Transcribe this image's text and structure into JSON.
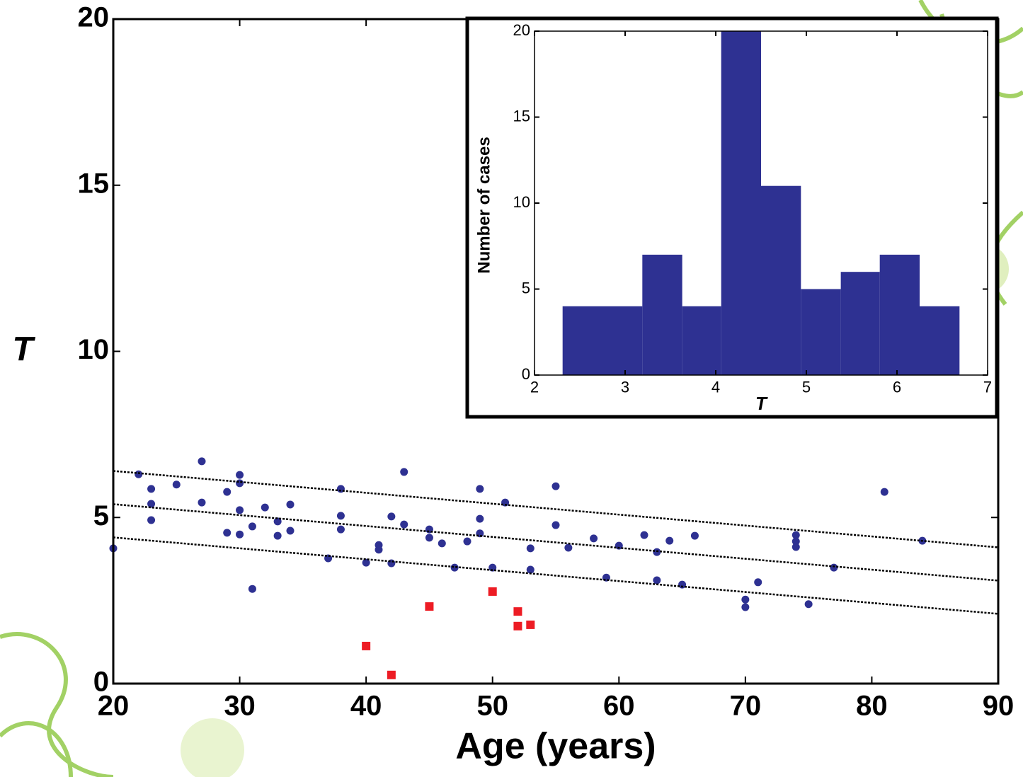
{
  "chart_data": [
    {
      "type": "scatter",
      "xlabel": "Age (years)",
      "ylabel": "T",
      "xlim": [
        20,
        90
      ],
      "ylim": [
        0,
        20
      ],
      "xticks": [
        20,
        30,
        40,
        50,
        60,
        70,
        80,
        90
      ],
      "yticks": [
        0,
        5,
        10,
        15,
        20
      ],
      "grid": false,
      "series": [
        {
          "color": "#2e3192",
          "marker": "circle",
          "mode": "markers",
          "x": [
            20,
            22,
            23,
            23,
            23,
            25,
            27,
            27,
            29,
            29,
            30,
            30,
            30,
            30,
            31,
            31,
            32,
            33,
            33,
            34,
            34,
            37,
            38,
            38,
            38,
            40,
            41,
            41,
            42,
            42,
            43,
            43,
            45,
            45,
            46,
            47,
            48,
            49,
            49,
            49,
            50,
            51,
            53,
            53,
            55,
            55,
            56,
            58,
            59,
            60,
            62,
            63,
            63,
            64,
            65,
            66,
            70,
            70,
            71,
            74,
            74,
            74,
            75,
            77,
            81,
            84
          ],
          "values": [
            4.07,
            6.3,
            5.86,
            5.41,
            4.92,
            5.99,
            6.69,
            5.45,
            5.77,
            4.54,
            6.28,
            6.03,
            5.22,
            4.49,
            2.85,
            4.73,
            5.3,
            4.88,
            4.45,
            5.39,
            4.6,
            3.77,
            5.86,
            5.05,
            4.64,
            3.64,
            4.17,
            4.03,
            5.03,
            3.62,
            6.37,
            4.79,
            4.64,
            4.39,
            4.22,
            3.49,
            4.28,
            5.86,
            4.96,
            4.52,
            3.49,
            5.45,
            4.07,
            3.43,
            5.94,
            4.77,
            4.09,
            4.37,
            3.19,
            4.15,
            4.47,
            3.96,
            3.11,
            4.3,
            2.98,
            4.45,
            2.53,
            2.3,
            3.05,
            4.47,
            4.28,
            4.11,
            2.39,
            3.49,
            5.77,
            4.3
          ]
        },
        {
          "color": "#ed1c24",
          "marker": "square",
          "mode": "markers",
          "x": [
            40,
            42,
            45,
            50,
            52,
            52,
            53
          ],
          "values": [
            1.13,
            0.26,
            2.32,
            2.77,
            2.17,
            1.73,
            1.77
          ]
        },
        {
          "color": "#000000",
          "mode": "line",
          "x": [
            20,
            90
          ],
          "values": [
            6.4,
            4.1
          ]
        },
        {
          "color": "#000000",
          "mode": "line",
          "x": [
            20,
            90
          ],
          "values": [
            5.4,
            3.1
          ]
        },
        {
          "color": "#000000",
          "mode": "line",
          "x": [
            20,
            90
          ],
          "values": [
            4.4,
            2.1
          ]
        }
      ]
    },
    {
      "type": "histogram",
      "xlabel": "T",
      "ylabel": "Number of cases",
      "color": "#2e3192",
      "xlim": [
        2,
        7
      ],
      "ylim": [
        0,
        20
      ],
      "xticks": [
        2,
        3,
        4,
        5,
        6,
        7
      ],
      "yticks": [
        0,
        5,
        10,
        15,
        20
      ],
      "grid": false,
      "bins": [
        2.31,
        2.75,
        3.19,
        3.63,
        4.06,
        4.5,
        4.94,
        5.38,
        5.81,
        6.25,
        6.69
      ],
      "values": [
        4,
        4,
        7,
        4,
        20,
        11,
        5,
        6,
        7,
        4
      ]
    }
  ]
}
